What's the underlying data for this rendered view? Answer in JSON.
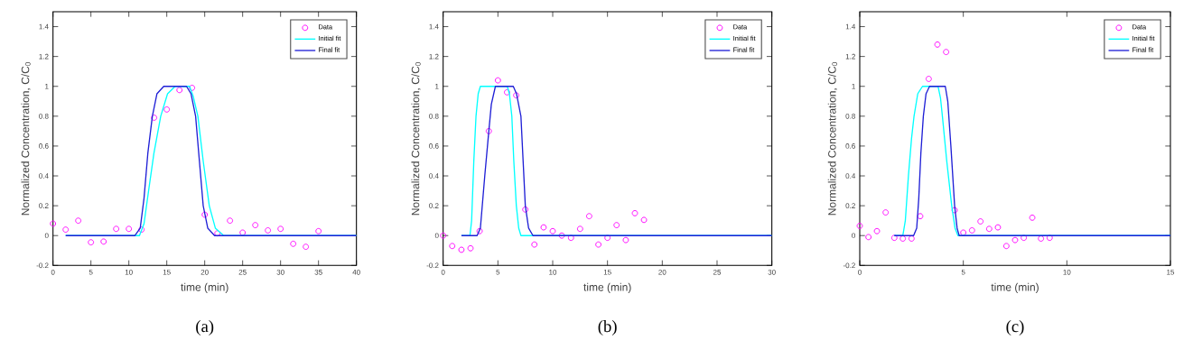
{
  "chart_data": [
    {
      "type": "line",
      "xlabel": "time (min)",
      "ylabel": "Normalized Concentration, C/C$_{0}$",
      "annotations": [
        "(a)"
      ],
      "legend": "top right",
      "grid": false,
      "xlim": [
        0,
        40
      ],
      "xticks": [
        0,
        5,
        10,
        15,
        20,
        25,
        30,
        35,
        40
      ],
      "ylim": [
        -0.2,
        1.5
      ],
      "yticks": [
        -0.2,
        0,
        0.2,
        0.4,
        0.6,
        0.8,
        1,
        1.2,
        1.4
      ],
      "series": [
        {
          "name": "Data",
          "type": "scatter",
          "marker": "circle",
          "color": "#ff00ff",
          "x": [
            0,
            1.67,
            3.33,
            5,
            6.67,
            8.33,
            10,
            11.67,
            13.33,
            15,
            16.67,
            18.33,
            20,
            21.67,
            23.33,
            25,
            26.67,
            28.33,
            30,
            31.67,
            33.33,
            35
          ],
          "values": [
            0.08,
            0.04,
            0.1,
            -0.045,
            -0.04,
            0.045,
            0.045,
            0.04,
            0.79,
            0.845,
            0.975,
            0.99,
            0.14,
            0.015,
            0.1,
            0.02,
            0.07,
            0.035,
            0.045,
            -0.055,
            -0.075,
            0.03
          ]
        },
        {
          "name": "Initial fit",
          "color": "#00ffff",
          "x": [
            1.67,
            11.4,
            12,
            12.6,
            13.3,
            14.2,
            15.1,
            16.1,
            18,
            18.5,
            19.1,
            19.8,
            20.6,
            21.4,
            22.5,
            40
          ],
          "values": [
            0,
            0,
            0.08,
            0.3,
            0.55,
            0.8,
            0.95,
            1,
            1,
            0.93,
            0.8,
            0.5,
            0.2,
            0.05,
            0,
            0
          ]
        },
        {
          "name": "Final fit",
          "color": "#1f1fd6",
          "x": [
            1.67,
            10.8,
            11.5,
            12,
            12.5,
            13.1,
            13.7,
            14.6,
            17.6,
            18.2,
            18.8,
            19.3,
            19.8,
            20.4,
            21.3,
            40
          ],
          "values": [
            0,
            0,
            0.05,
            0.25,
            0.55,
            0.8,
            0.95,
            1,
            1,
            0.95,
            0.8,
            0.5,
            0.2,
            0.05,
            0,
            0
          ]
        }
      ]
    },
    {
      "type": "line",
      "xlabel": "time (min)",
      "ylabel": "Normalized Concentration, C/C$_{0}$",
      "annotations": [
        "(b)"
      ],
      "legend": "top right",
      "grid": false,
      "xlim": [
        0,
        30
      ],
      "xticks": [
        0,
        5,
        10,
        15,
        20,
        25,
        30
      ],
      "ylim": [
        -0.2,
        1.5
      ],
      "yticks": [
        -0.2,
        0,
        0.2,
        0.4,
        0.6,
        0.8,
        1,
        1.2,
        1.4
      ],
      "series": [
        {
          "name": "Data",
          "type": "scatter",
          "marker": "circle",
          "color": "#ff00ff",
          "x": [
            0,
            0.83,
            1.67,
            2.5,
            3.33,
            4.17,
            5,
            5.83,
            6.67,
            7.5,
            8.33,
            9.17,
            10,
            10.83,
            11.67,
            12.5,
            13.33,
            14.17,
            15,
            15.83,
            16.67,
            17.5,
            18.33
          ],
          "values": [
            0,
            -0.07,
            -0.095,
            -0.085,
            0.03,
            0.7,
            1.04,
            0.96,
            0.94,
            0.175,
            -0.06,
            0.055,
            0.03,
            0,
            -0.015,
            0.045,
            0.13,
            -0.06,
            -0.015,
            0.07,
            -0.03,
            0.15,
            0.105
          ]
        },
        {
          "name": "Initial fit",
          "color": "#00ffff",
          "x": [
            1.67,
            2.45,
            2.6,
            2.8,
            3.0,
            3.2,
            3.4,
            5.86,
            6.05,
            6.27,
            6.45,
            6.68,
            6.9,
            7.1,
            30
          ],
          "values": [
            0,
            0,
            0.1,
            0.5,
            0.8,
            0.95,
            1,
            1,
            0.95,
            0.8,
            0.5,
            0.2,
            0.05,
            0,
            0
          ]
        },
        {
          "name": "Final fit",
          "color": "#1f1fd6",
          "x": [
            1.67,
            3.1,
            3.4,
            3.8,
            4.17,
            4.4,
            4.77,
            6.4,
            6.7,
            7.1,
            7.3,
            7.5,
            7.8,
            8.2,
            30
          ],
          "values": [
            0,
            0,
            0.05,
            0.4,
            0.7,
            0.88,
            1,
            1,
            0.95,
            0.8,
            0.5,
            0.2,
            0.05,
            0,
            0
          ]
        }
      ]
    },
    {
      "type": "line",
      "xlabel": "time (min)",
      "ylabel": "Normalized Concentration, C/C$_{0}$",
      "annotations": [
        "(c)"
      ],
      "legend": "top right",
      "grid": false,
      "xlim": [
        0,
        15
      ],
      "xticks": [
        0,
        5,
        10,
        15
      ],
      "ylim": [
        -0.2,
        1.5
      ],
      "yticks": [
        -0.2,
        0,
        0.2,
        0.4,
        0.6,
        0.8,
        1,
        1.2,
        1.4
      ],
      "series": [
        {
          "name": "Data",
          "type": "scatter",
          "marker": "circle",
          "color": "#ff00ff",
          "x": [
            0,
            0.42,
            0.83,
            1.25,
            1.67,
            2.08,
            2.5,
            2.92,
            3.33,
            3.75,
            4.17,
            4.58,
            5,
            5.42,
            5.83,
            6.25,
            6.67,
            7.08,
            7.5,
            7.92,
            8.33,
            8.75,
            9.17
          ],
          "values": [
            0.065,
            -0.01,
            0.03,
            0.155,
            -0.015,
            -0.02,
            -0.02,
            0.13,
            1.05,
            1.28,
            1.23,
            0.17,
            0.02,
            0.035,
            0.095,
            0.045,
            0.055,
            -0.07,
            -0.03,
            -0.015,
            0.12,
            -0.02,
            -0.015
          ]
        },
        {
          "name": "Initial fit",
          "color": "#00ffff",
          "x": [
            1.67,
            2.08,
            2.2,
            2.35,
            2.5,
            2.62,
            2.8,
            3.03,
            3.78,
            3.9,
            3.99,
            4.2,
            4.44,
            4.6,
            4.74,
            15
          ],
          "values": [
            0,
            0,
            0.1,
            0.4,
            0.65,
            0.8,
            0.95,
            1,
            1,
            0.92,
            0.8,
            0.5,
            0.2,
            0.05,
            0,
            0
          ]
        },
        {
          "name": "Final fit",
          "color": "#1f1fd6",
          "x": [
            1.67,
            2.6,
            2.75,
            2.85,
            2.95,
            3.07,
            3.2,
            3.37,
            4.13,
            4.25,
            4.4,
            4.58,
            4.7,
            4.8,
            15
          ],
          "values": [
            0,
            0,
            0.05,
            0.25,
            0.55,
            0.8,
            0.95,
            1,
            1,
            0.9,
            0.6,
            0.2,
            0.05,
            0,
            0
          ]
        }
      ]
    }
  ]
}
